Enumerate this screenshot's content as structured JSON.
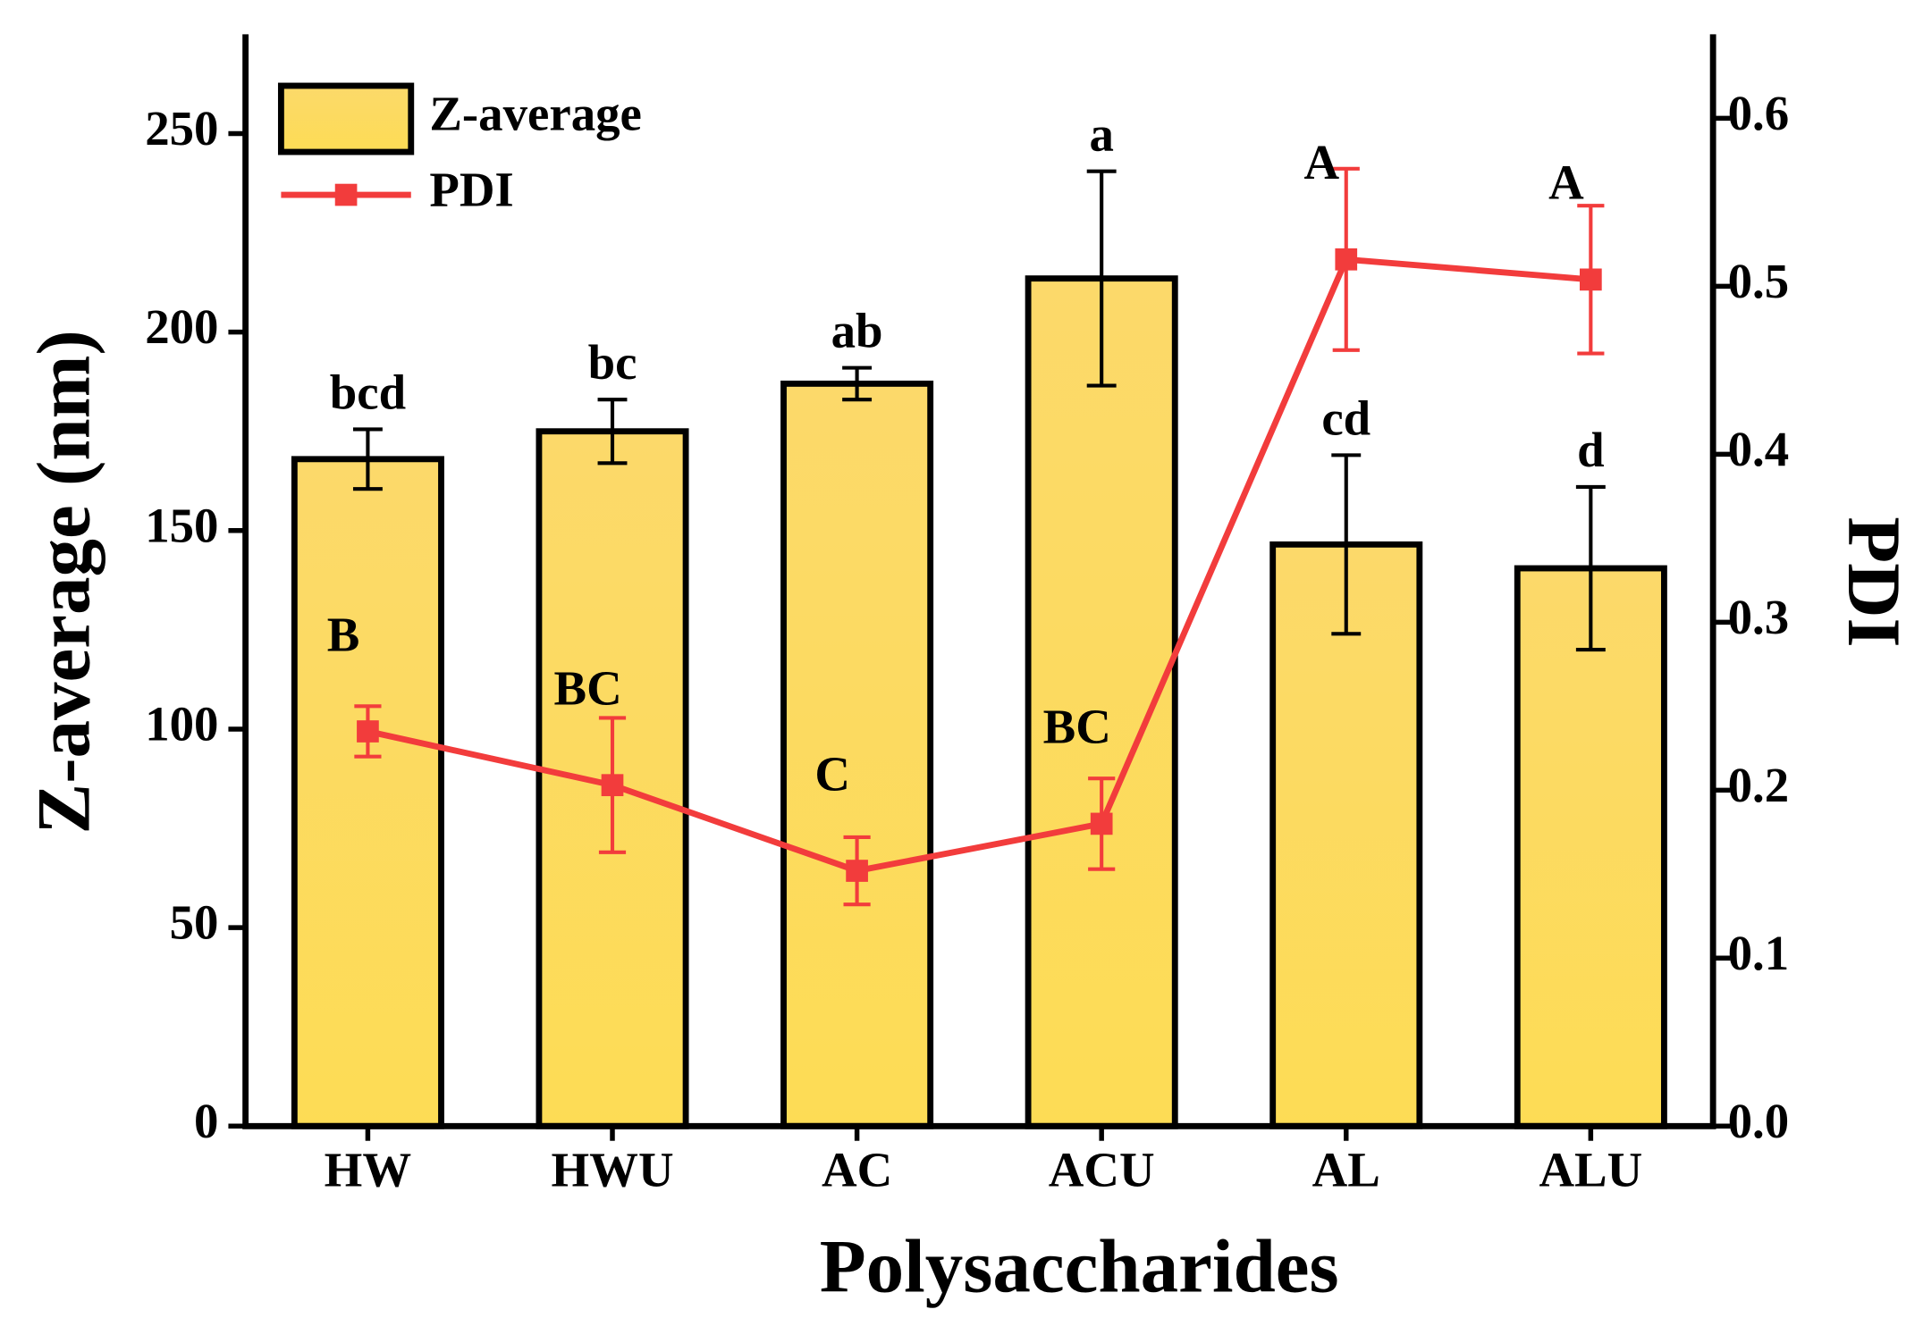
{
  "chart_data": {
    "type": "bar-line",
    "x_label": "Polysaccharides",
    "y_label": "Z-average (nm)",
    "y2_label": "PDI",
    "categories": [
      "HW",
      "HWU",
      "AC",
      "ACU",
      "AL",
      "ALU"
    ],
    "ylim": [
      0,
      275
    ],
    "yticks": [
      0,
      50,
      100,
      150,
      200,
      250
    ],
    "y2lim": [
      0,
      0.65
    ],
    "y2ticks": [
      {
        "value": 0,
        "label": "0.0"
      },
      0.1,
      0.2,
      0.3,
      0.4,
      0.5,
      0.6
    ],
    "series": [
      {
        "name": "Z-average",
        "type": "bar",
        "color": "#fcd96a",
        "values": [
          168,
          175,
          187,
          213.5,
          146.5,
          140.5
        ],
        "errors": [
          7.5,
          8,
          4,
          27,
          22.5,
          20.5
        ],
        "letters": [
          "bcd",
          "bc",
          "ab",
          "a",
          "cd",
          "d"
        ]
      },
      {
        "name": "PDI",
        "type": "line",
        "axis": "y2",
        "color": "#f23c3c",
        "values": [
          0.235,
          0.203,
          0.152,
          0.18,
          0.516,
          0.504
        ],
        "errors": [
          0.015,
          0.04,
          0.02,
          0.027,
          0.054,
          0.044
        ],
        "letters": [
          "B",
          "BC",
          "C",
          "BC",
          "A",
          "A"
        ]
      }
    ]
  }
}
